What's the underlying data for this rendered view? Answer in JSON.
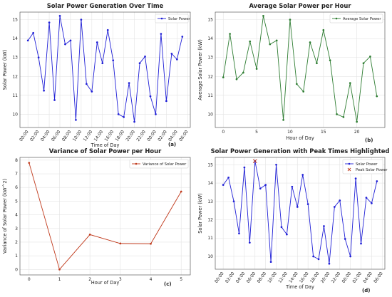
{
  "chart_data": [
    {
      "type": "line",
      "title": "Solar Power Generation Over Time",
      "xlabel": "Time of Day",
      "ylabel": "Solar Power (kW)",
      "panel_tag": "(a)",
      "legend_position": "upper right",
      "x_tick_labels": [
        "00:00",
        "02:00",
        "04:00",
        "06:00",
        "08:00",
        "10:00",
        "12:00",
        "14:00",
        "16:00",
        "18:00",
        "20:00",
        "22:00",
        "00:00",
        "02:00",
        "04:00",
        "06:00"
      ],
      "y_ticks": [
        10,
        11,
        12,
        13,
        14,
        15
      ],
      "ylim": [
        9.3,
        15.4
      ],
      "grid": true,
      "series": [
        {
          "name": "Solar Power",
          "color": "#1f1fd6",
          "marker": "circle",
          "values": [
            13.9,
            14.3,
            13.0,
            11.25,
            14.85,
            10.75,
            15.2,
            13.7,
            13.9,
            9.7,
            15.0,
            11.6,
            11.2,
            13.8,
            12.7,
            14.45,
            12.85,
            10.0,
            9.85,
            11.65,
            9.6,
            12.7,
            13.05,
            10.95,
            10.0,
            14.25,
            10.7,
            13.2,
            12.9,
            14.1
          ]
        }
      ]
    },
    {
      "type": "line",
      "title": "Average Solar Power per Hour",
      "xlabel": "Hour of Day",
      "ylabel": "Average Solar Power (kW)",
      "panel_tag": "(b)",
      "legend_position": "upper right",
      "x_ticks": [
        0,
        5,
        10,
        15,
        20
      ],
      "xlim": [
        -1.2,
        24.2
      ],
      "y_ticks": [
        10,
        11,
        12,
        13,
        14,
        15
      ],
      "ylim": [
        9.3,
        15.4
      ],
      "grid": true,
      "series": [
        {
          "name": "Average Solar Power",
          "color": "#2e7d32",
          "marker": "circle",
          "x": [
            0,
            1,
            2,
            3,
            4,
            5,
            6,
            7,
            8,
            9,
            10,
            11,
            12,
            13,
            14,
            15,
            16,
            17,
            18,
            19,
            20,
            21,
            22,
            23
          ],
          "values": [
            11.95,
            14.25,
            11.85,
            12.2,
            13.85,
            12.4,
            15.2,
            13.7,
            13.9,
            9.7,
            15.0,
            11.6,
            11.2,
            13.8,
            12.7,
            14.45,
            12.85,
            10.0,
            9.85,
            11.65,
            9.6,
            12.7,
            13.05,
            10.95
          ]
        }
      ]
    },
    {
      "type": "line",
      "title": "Variance of Solar Power per Hour",
      "xlabel": "Hour of Day",
      "ylabel": "Variance of Solar Power (kW^2)",
      "panel_tag": "(c)",
      "legend_position": "upper right",
      "x_ticks": [
        0,
        1,
        2,
        3,
        4,
        5
      ],
      "xlim": [
        -0.3,
        5.3
      ],
      "y_ticks": [
        0,
        1,
        2,
        3,
        4,
        5,
        6,
        7,
        8
      ],
      "ylim": [
        -0.4,
        8.2
      ],
      "grid": true,
      "series": [
        {
          "name": "Variance of Solar Power",
          "color": "#c0391b",
          "marker": "circle",
          "x": [
            0,
            1,
            2,
            3,
            4,
            5
          ],
          "values": [
            7.8,
            0.0,
            2.55,
            1.9,
            1.88,
            5.7
          ]
        }
      ]
    },
    {
      "type": "line",
      "title": "Solar Power Generation with Peak Times Highlighted",
      "xlabel": "Time of Day",
      "ylabel": "Solar Power (kW)",
      "panel_tag": "(d)",
      "legend_position": "upper right",
      "x_tick_labels": [
        "00:00",
        "02:00",
        "04:00",
        "06:00",
        "08:00",
        "10:00",
        "12:00",
        "14:00",
        "16:00",
        "18:00",
        "20:00",
        "22:00",
        "00:00",
        "02:00",
        "04:00",
        "06:00"
      ],
      "y_ticks": [
        10,
        11,
        12,
        13,
        14,
        15
      ],
      "ylim": [
        9.3,
        15.4
      ],
      "grid": true,
      "series": [
        {
          "name": "Solar Power",
          "color": "#1f1fd6",
          "marker": "circle",
          "values": [
            13.9,
            14.3,
            13.0,
            11.25,
            14.85,
            10.75,
            15.2,
            13.7,
            13.9,
            9.7,
            15.0,
            11.6,
            11.2,
            13.8,
            12.7,
            14.45,
            12.85,
            10.0,
            9.85,
            11.65,
            9.6,
            12.7,
            13.05,
            10.95,
            10.0,
            14.25,
            10.7,
            13.2,
            12.9,
            14.1
          ]
        },
        {
          "name": "Peak Solar Power",
          "color": "#c0391b",
          "marker": "x",
          "points": [
            {
              "index": 6,
              "value": 15.2
            }
          ]
        }
      ]
    }
  ]
}
